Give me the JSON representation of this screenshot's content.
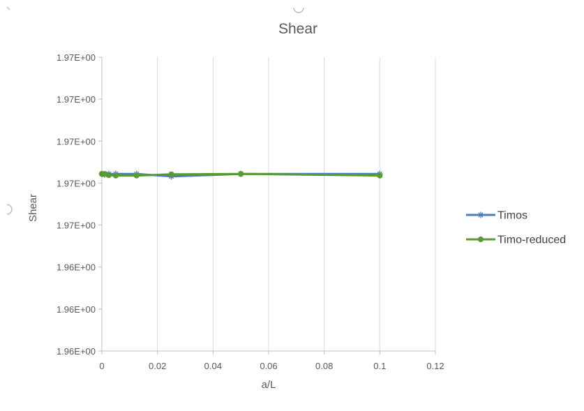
{
  "chart_data": {
    "type": "line",
    "title": "Shear",
    "xlabel": "a/L",
    "ylabel": "Shear",
    "xlim": [
      0,
      0.12
    ],
    "x_ticks": [
      0,
      0.02,
      0.04,
      0.06,
      0.08,
      0.1,
      0.12
    ],
    "x_tick_labels": [
      "0",
      "0.02",
      "0.04",
      "0.06",
      "0.08",
      "0.1",
      "0.12"
    ],
    "ylim": [
      1.9655,
      1.9725
    ],
    "y_ticks": [
      1.9655,
      1.9665,
      1.9675,
      1.9685,
      1.9695,
      1.9705,
      1.9715,
      1.9725
    ],
    "y_tick_labels": [
      "1.96E+00",
      "1.96E+00",
      "1.96E+00",
      "1.97E+00",
      "1.97E+00",
      "1.97E+00",
      "1.97E+00",
      "1.97E+00"
    ],
    "grid": "vertical",
    "legend_position": "right",
    "series": [
      {
        "name": "Timos",
        "color": "#4a7ebb",
        "marker": "asterisk",
        "x": [
          0,
          0.001,
          0.0025,
          0.005,
          0.0125,
          0.025,
          0.05,
          0.1
        ],
        "y": [
          1.96972,
          1.9697,
          1.96972,
          1.96972,
          1.96972,
          1.96966,
          1.96972,
          1.96972
        ]
      },
      {
        "name": "Timo-reduced",
        "color": "#5a9a32",
        "marker": "circle",
        "x": [
          0,
          0.001,
          0.0025,
          0.005,
          0.0125,
          0.025,
          0.05,
          0.1
        ],
        "y": [
          1.96972,
          1.96972,
          1.96969,
          1.96968,
          1.96968,
          1.96971,
          1.96972,
          1.96968
        ]
      }
    ]
  }
}
